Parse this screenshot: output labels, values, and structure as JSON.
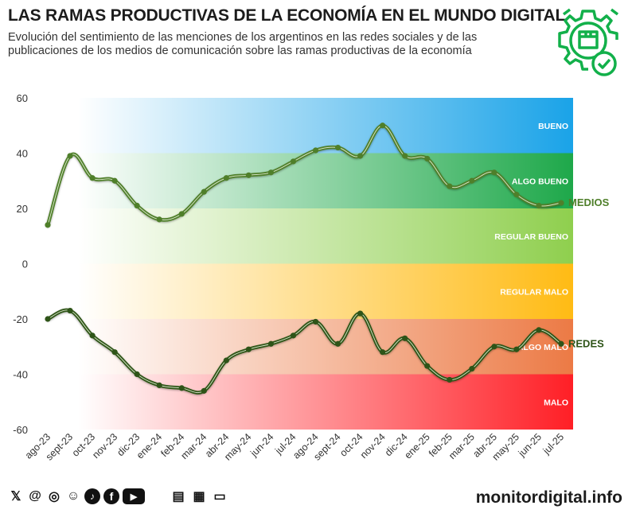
{
  "header": {
    "title": "LAS RAMAS PRODUCTIVAS DE LA ECONOMÍA EN EL MUNDO DIGITAL",
    "subtitle_line1": "Evolución del sentimiento de las menciones de los argentinos en las redes sociales y de las",
    "subtitle_line2": "publicaciones de los medios de comunicación sobre las ramas productivas de la economía"
  },
  "chart_data": {
    "type": "line",
    "categories": [
      "ago-23",
      "sept-23",
      "oct-23",
      "nov-23",
      "dic-23",
      "ene-24",
      "feb-24",
      "mar-24",
      "abr-24",
      "may-24",
      "jun-24",
      "jul-24",
      "ago-24",
      "sept-24",
      "oct-24",
      "nov-24",
      "dic-24",
      "ene-25",
      "feb-25",
      "mar-25",
      "abr-25",
      "may-25",
      "jun-25",
      "jul-25"
    ],
    "series": [
      {
        "name": "MEDIOS",
        "color": "#4f7f2a",
        "values": [
          14,
          39,
          31,
          30,
          21,
          16,
          18,
          26,
          31,
          32,
          33,
          37,
          41,
          42,
          39,
          50,
          39,
          38,
          28,
          30,
          33,
          25,
          21,
          22
        ]
      },
      {
        "name": "REDES",
        "color": "#2e5418",
        "values": [
          -20,
          -17,
          -26,
          -32,
          -40,
          -44,
          -45,
          -46,
          -35,
          -31,
          -29,
          -26,
          -21,
          -29,
          -18,
          -32,
          -27,
          -37,
          -42,
          -38,
          -30,
          -31,
          -24,
          -29
        ]
      }
    ],
    "ylim": [
      -60,
      60
    ],
    "yticks": [
      -60,
      -40,
      -20,
      0,
      20,
      40,
      60
    ],
    "bands": [
      {
        "label": "BUENO",
        "from": 40,
        "to": 60,
        "color": "#1aa3e8"
      },
      {
        "label": "ALGO BUENO",
        "from": 20,
        "to": 40,
        "color": "#1ea84a"
      },
      {
        "label": "REGULAR BUENO",
        "from": 0,
        "to": 20,
        "color": "#8fcf4e"
      },
      {
        "label": "REGULAR MALO",
        "from": -20,
        "to": 0,
        "color": "#ffbb14"
      },
      {
        "label": "ALGO MALO",
        "from": -40,
        "to": -20,
        "color": "#ec7a45"
      },
      {
        "label": "MALO",
        "from": -60,
        "to": -40,
        "color": "#ff1f26"
      }
    ]
  },
  "footer": {
    "social_icons": [
      "x-icon",
      "threads-icon",
      "instagram-icon",
      "web-icon",
      "tiktok-icon",
      "facebook-icon",
      "youtube-icon"
    ],
    "social_glyphs": [
      "𝕏",
      "@",
      "◎",
      "☺",
      "♪",
      "f",
      "▶"
    ],
    "media_icons": [
      "newspaper-icon",
      "radio-icon",
      "tv-icon"
    ],
    "media_glyphs": [
      "▤",
      "▦",
      "▭"
    ],
    "brand": "monitordigital.info"
  }
}
